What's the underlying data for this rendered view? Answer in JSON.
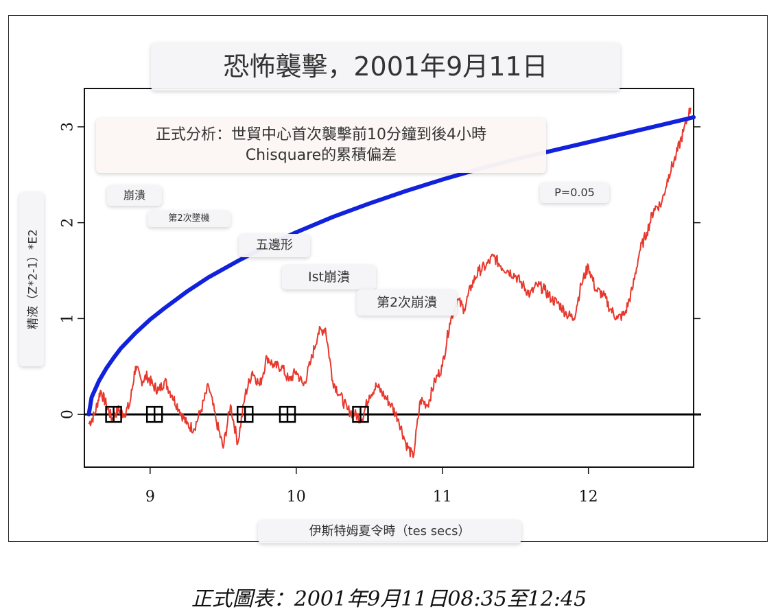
{
  "chart_data": {
    "type": "line",
    "title": "恐怖襲擊，2001年9月11日",
    "subtitle_line1": "正式分析：世貿中心首次襲擊前10分鐘到後4小時",
    "subtitle_line2": "Chisquare的累積偏差",
    "xlabel": "伊斯特姆夏令時（tes secs）",
    "ylabel": "精液（Z*2-1）*E2",
    "xlim": [
      8.55,
      12.72
    ],
    "ylim": [
      -0.55,
      3.4
    ],
    "x_ticks": [
      9,
      10,
      11,
      12
    ],
    "x_tick_labels": [
      "9",
      "10",
      "11",
      "12"
    ],
    "y_ticks": [
      0,
      1,
      2,
      3
    ],
    "y_tick_labels": [
      "0",
      "1",
      "2",
      "3"
    ],
    "series": [
      {
        "name": "",
        "color": "#e8372c",
        "x": [
          8.58,
          8.62,
          8.66,
          8.7,
          8.74,
          8.78,
          8.82,
          8.86,
          8.9,
          8.94,
          8.98,
          9.02,
          9.06,
          9.1,
          9.15,
          9.2,
          9.25,
          9.3,
          9.35,
          9.4,
          9.45,
          9.5,
          9.55,
          9.6,
          9.65,
          9.7,
          9.75,
          9.8,
          9.85,
          9.9,
          9.95,
          10.0,
          10.05,
          10.1,
          10.15,
          10.2,
          10.25,
          10.3,
          10.35,
          10.4,
          10.45,
          10.5,
          10.55,
          10.6,
          10.65,
          10.7,
          10.75,
          10.8,
          10.85,
          10.9,
          10.95,
          11.0,
          11.05,
          11.1,
          11.15,
          11.2,
          11.25,
          11.3,
          11.35,
          11.4,
          11.45,
          11.5,
          11.55,
          11.6,
          11.65,
          11.7,
          11.75,
          11.8,
          11.85,
          11.9,
          11.95,
          12.0,
          12.05,
          12.1,
          12.15,
          12.2,
          12.25,
          12.3,
          12.35,
          12.4,
          12.45,
          12.5,
          12.55,
          12.6,
          12.65,
          12.7
        ],
        "y": [
          -0.1,
          0.0,
          0.25,
          0.1,
          -0.05,
          0.05,
          0.0,
          0.1,
          0.5,
          0.35,
          0.4,
          0.3,
          0.25,
          0.35,
          0.2,
          0.05,
          -0.1,
          -0.15,
          0.05,
          0.3,
          -0.05,
          -0.35,
          0.1,
          -0.3,
          0.2,
          0.45,
          0.3,
          0.6,
          0.5,
          0.5,
          0.35,
          0.45,
          0.3,
          0.55,
          0.85,
          0.9,
          0.35,
          0.2,
          0.05,
          0.0,
          -0.05,
          0.2,
          0.3,
          0.2,
          0.1,
          -0.05,
          -0.3,
          -0.45,
          0.15,
          0.1,
          0.35,
          0.5,
          0.95,
          1.2,
          1.1,
          1.35,
          1.5,
          1.55,
          1.65,
          1.55,
          1.5,
          1.45,
          1.35,
          1.25,
          1.35,
          1.3,
          1.2,
          1.15,
          1.05,
          1.0,
          1.35,
          1.55,
          1.3,
          1.25,
          1.1,
          1.0,
          1.05,
          1.3,
          1.7,
          1.9,
          2.15,
          2.2,
          2.5,
          2.7,
          2.95,
          3.2
        ]
      },
      {
        "name": "P=0.05",
        "color": "#1122dd",
        "x": [
          8.58,
          8.6,
          8.65,
          8.7,
          8.75,
          8.8,
          8.9,
          9.0,
          9.1,
          9.25,
          9.4,
          9.6,
          9.8,
          10.0,
          10.25,
          10.5,
          10.75,
          11.0,
          11.25,
          11.5,
          11.75,
          12.0,
          12.25,
          12.5,
          12.72
        ],
        "y": [
          0.0,
          0.18,
          0.35,
          0.48,
          0.59,
          0.69,
          0.85,
          0.99,
          1.11,
          1.28,
          1.43,
          1.6,
          1.76,
          1.9,
          2.06,
          2.2,
          2.33,
          2.45,
          2.56,
          2.66,
          2.75,
          2.84,
          2.93,
          3.02,
          3.1
        ]
      }
    ],
    "markers": {
      "symbol": "boxed-cross",
      "x": [
        8.75,
        9.03,
        9.65,
        9.94,
        10.44
      ],
      "y": [
        0,
        0,
        0,
        0,
        0
      ]
    },
    "annotations": [
      "崩潰",
      "第2次墜機",
      "五邊形",
      "Ist崩潰",
      "第2次崩潰",
      "P=0.05"
    ],
    "caption": "正式圖表：2001年9月11日08:35至12:45",
    "grid": false,
    "legend": "none"
  }
}
